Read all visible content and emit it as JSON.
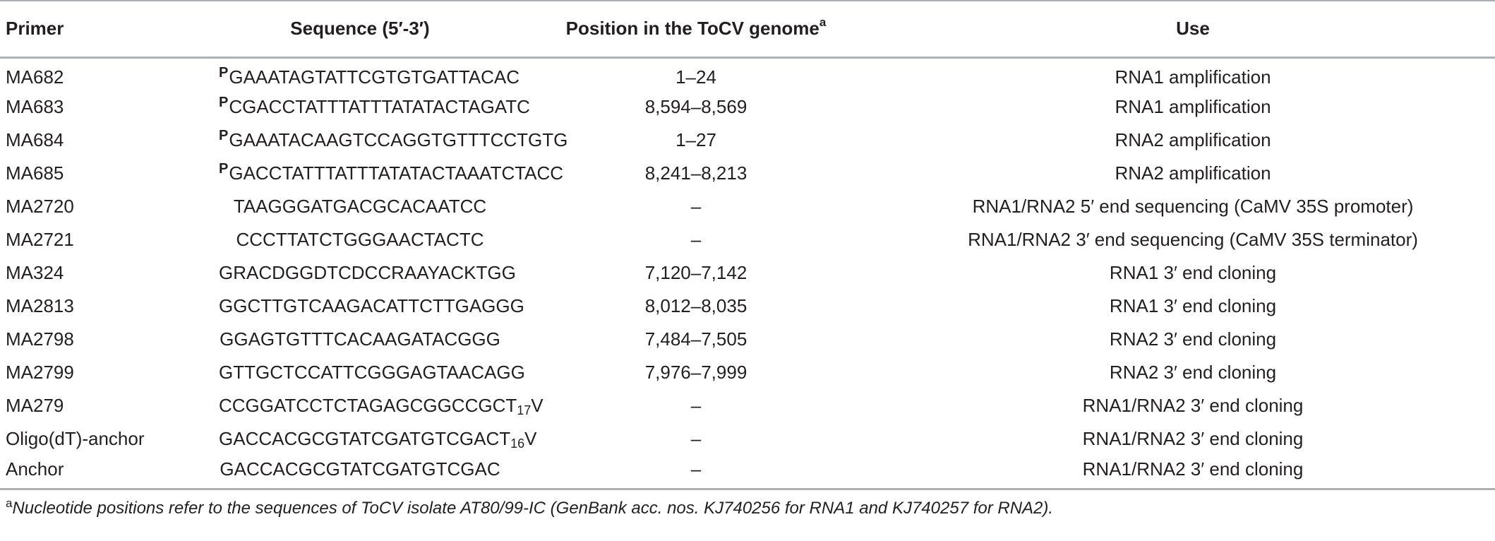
{
  "table": {
    "headers": {
      "primer": "Primer",
      "sequence": "Sequence (5′-3′)",
      "position": "Position in the ToCV genome",
      "position_footnote_mark": "a",
      "use": "Use"
    },
    "phospho_mark": "P",
    "rows": [
      {
        "primer": "MA682",
        "phospho": true,
        "sequence": "GAAATAGTATTCGTGTGATTACAC",
        "position": "1–24",
        "use": "RNA1 amplification"
      },
      {
        "primer": "MA683",
        "phospho": true,
        "sequence": "CGACCTATTTATTTATATACTAGATC",
        "position": "8,594–8,569",
        "use": "RNA1 amplification"
      },
      {
        "primer": "MA684",
        "phospho": true,
        "sequence": "GAAATACAAGTCCAGGTGTTTCCTGTG",
        "position": "1–27",
        "use": "RNA2 amplification"
      },
      {
        "primer": "MA685",
        "phospho": true,
        "sequence": "GACCTATTTATTTATATACTAAATCTACC",
        "position": "8,241–8,213",
        "use": "RNA2 amplification"
      },
      {
        "primer": "MA2720",
        "phospho": false,
        "sequence": "TAAGGGATGACGCACAATCC",
        "position": "–",
        "use": "RNA1/RNA2 5′ end sequencing (CaMV 35S promoter)"
      },
      {
        "primer": "MA2721",
        "phospho": false,
        "sequence": "CCCTTATCTGGGAACTACTC",
        "position": "–",
        "use": "RNA1/RNA2 3′ end sequencing (CaMV 35S terminator)"
      },
      {
        "primer": "MA324",
        "phospho": false,
        "sequence": "GRACDGGDTCDCCRAAYACKTGG",
        "position": "7,120–7,142",
        "use": "RNA1 3′ end cloning"
      },
      {
        "primer": "MA2813",
        "phospho": false,
        "sequence": "GGCTTGTCAAGACATTCTTGAGGG",
        "position": "8,012–8,035",
        "use": "RNA1 3′ end cloning"
      },
      {
        "primer": "MA2798",
        "phospho": false,
        "sequence": "GGAGTGTTTCACAAGATACGGG",
        "position": "7,484–7,505",
        "use": "RNA2 3′ end cloning"
      },
      {
        "primer": "MA2799",
        "phospho": false,
        "sequence": "GTTGCTCCATTCGGGAGTAACAGG",
        "position": "7,976–7,999",
        "use": "RNA2 3′ end cloning"
      },
      {
        "primer": "MA279",
        "phospho": false,
        "sequence": "CCGGATCCTCTAGAGCGGCCGCT",
        "sequence_sub": "17",
        "sequence_tail": "V",
        "position": "–",
        "use": "RNA1/RNA2 3′ end cloning"
      },
      {
        "primer": "Oligo(dT)-anchor",
        "phospho": false,
        "sequence": "GACCACGCGTATCGATGTCGACT",
        "sequence_sub": "16",
        "sequence_tail": "V",
        "position": "–",
        "use": "RNA1/RNA2 3′ end cloning"
      },
      {
        "primer": "Anchor",
        "phospho": false,
        "sequence": "GACCACGCGTATCGATGTCGAC",
        "position": "–",
        "use": "RNA1/RNA2 3′ end cloning"
      }
    ]
  },
  "footnote": {
    "mark": "a",
    "text": "Nucleotide positions refer to the sequences of ToCV isolate AT80/99-IC (GenBank acc. nos. KJ740256 for RNA1 and KJ740257 for RNA2)."
  }
}
